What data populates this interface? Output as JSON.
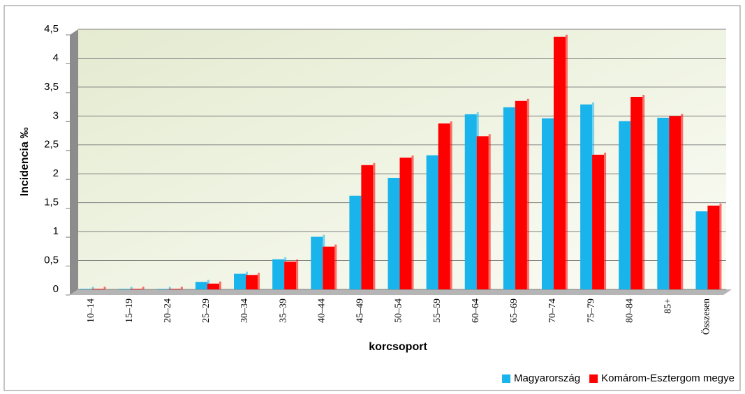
{
  "chart_data": {
    "type": "bar",
    "xlabel": "korcsoport",
    "ylabel": "Incidencia ‰",
    "categories": [
      "10–14",
      "15–19",
      "20–24",
      "25–29",
      "30–34",
      "35–39",
      "40–44",
      "45–49",
      "50–54",
      "55–59",
      "60–64",
      "65–69",
      "70–74",
      "75–79",
      "80–84",
      "85+",
      "Összesen"
    ],
    "series": [
      {
        "name": "Magyarország",
        "color": "#19b4ec",
        "values": [
          0.01,
          0.01,
          0.01,
          0.13,
          0.27,
          0.52,
          0.91,
          1.62,
          1.93,
          2.32,
          3.03,
          3.15,
          2.96,
          3.2,
          2.91,
          2.97,
          1.35
        ]
      },
      {
        "name": "Komárom-Esztergom megye",
        "color": "#ff0000",
        "values": [
          0.01,
          0.01,
          0.01,
          0.1,
          0.25,
          0.48,
          0.74,
          2.15,
          2.28,
          2.87,
          2.65,
          3.26,
          4.37,
          2.33,
          3.33,
          3.0,
          1.45
        ]
      }
    ],
    "ylim": [
      0,
      4.5
    ],
    "yticks": [
      0,
      {
        "value": 0.5,
        "label": "0,5"
      },
      1,
      {
        "value": 1.5,
        "label": "1,5"
      },
      2,
      {
        "value": 2.5,
        "label": "2,5"
      },
      3,
      {
        "value": 3.5,
        "label": "3,5"
      },
      4,
      {
        "value": 4.5,
        "label": "4,5"
      }
    ],
    "grid": true,
    "legend": "bottom-right"
  }
}
